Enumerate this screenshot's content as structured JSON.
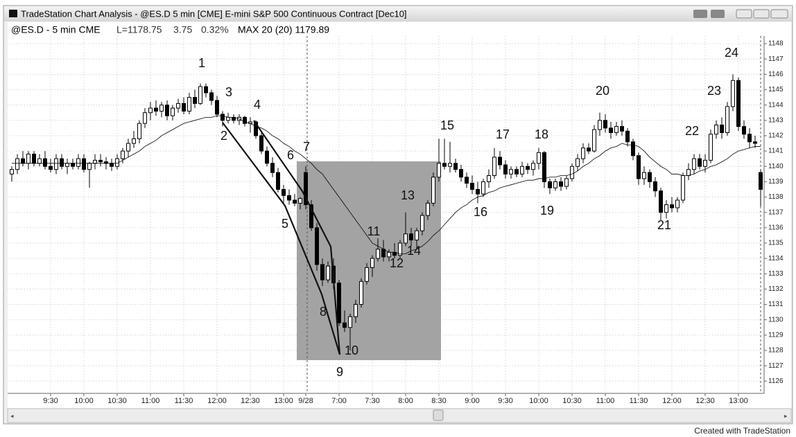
{
  "window_title": "TradeStation Chart Analysis - @ES.D 5 min [CME] E-mini S&P 500 Continuous Contract [Dec10]",
  "info": {
    "symbol": "@ES.D - 5 min CME",
    "last": "L=1178.75",
    "change": "3.75",
    "percent": "0.32%",
    "indicator": "MAX 20 (20) 1179.89"
  },
  "footer": "Created with TradeStation",
  "chart_data": {
    "type": "candlestick",
    "categories": [
      null,
      null,
      null,
      null,
      null,
      null,
      null,
      "9:30",
      null,
      null,
      null,
      null,
      null,
      "10:00",
      null,
      null,
      null,
      null,
      null,
      "10:30",
      null,
      null,
      null,
      null,
      null,
      "11:00",
      null,
      null,
      null,
      null,
      null,
      "11:30",
      null,
      null,
      null,
      null,
      null,
      "12:00",
      null,
      null,
      null,
      null,
      null,
      "12:30",
      null,
      null,
      null,
      null,
      null,
      "13:00",
      null,
      null,
      null,
      "9/28",
      null,
      null,
      null,
      null,
      null,
      "7:00",
      null,
      null,
      null,
      null,
      null,
      "7:30",
      null,
      null,
      null,
      null,
      null,
      "8:00",
      null,
      null,
      null,
      null,
      null,
      "8:30",
      null,
      null,
      null,
      null,
      null,
      "9:00",
      null,
      null,
      null,
      null,
      null,
      "9:30",
      null,
      null,
      null,
      null,
      null,
      "10:00",
      null,
      null,
      null,
      null,
      null,
      "10:30",
      null,
      null,
      null,
      null,
      null,
      "11:00",
      null,
      null,
      null,
      null,
      null,
      "11:30",
      null,
      null,
      null,
      null,
      null,
      "12:00",
      null,
      null,
      null,
      null,
      null,
      "12:30",
      null,
      null,
      null,
      null,
      null,
      "13:00",
      null,
      null,
      null,
      null
    ],
    "open": [
      1139.5,
      1139.8,
      1140.5,
      1140.2,
      1140.8,
      1140.2,
      1140.5,
      1140,
      1139.8,
      1140.5,
      1140,
      1140.2,
      1140,
      1140.5,
      1139.8,
      1140.2,
      1140.4,
      1140.3,
      1140.2,
      1140,
      1140.5,
      1141,
      1141.5,
      1141.8,
      1142.8,
      1143.5,
      1143.8,
      1143.6,
      1144,
      1143.3,
      1143.8,
      1144.1,
      1143.6,
      1144.5,
      1144.1,
      1145.2,
      1144.8,
      1144.3,
      1143.4,
      1143,
      1143.2,
      1143,
      1143.2,
      1142.8,
      1142.9,
      1142,
      1141,
      1140.2,
      1139.6,
      1138.5,
      1138.1,
      1137.8,
      1137.6,
      1139.6,
      1137.5,
      1136,
      1133.6,
      1132.6,
      1133.5,
      1132.4,
      1129.8,
      1129.5,
      1130.2,
      1131,
      1132.5,
      1133.4,
      1134,
      1134.6,
      1134.1,
      1134.4,
      1134.2,
      1135,
      1135.6,
      1135.2,
      1135.8,
      1136.8,
      1137.6,
      1139.3,
      1140.2,
      1140,
      1140.2,
      1139.8,
      1139.3,
      1138.9,
      1138.5,
      1138.2,
      1139,
      1139.4,
      1140.6,
      1140.1,
      1139.5,
      1139.8,
      1139.5,
      1140,
      1139.8,
      1140.2,
      1140.9,
      1139,
      1138.6,
      1139,
      1138.7,
      1139.2,
      1140,
      1140.5,
      1141.2,
      1141,
      1142.4,
      1143,
      1142.5,
      1142.2,
      1142.6,
      1142.3,
      1141.6,
      1140.7,
      1139.2,
      1139.6,
      1139,
      1138.4,
      1137,
      1137.5,
      1137.3,
      1137.8,
      1139.4,
      1139.8,
      1140.5,
      1140,
      1140.4,
      1142.1,
      1142.7,
      1142.2,
      1143.9,
      1145.6,
      1142.6,
      1142.1,
      1141.6,
      1139.6
    ],
    "high": [
      1140,
      1140.8,
      1141,
      1141,
      1141,
      1140.8,
      1141,
      1140.5,
      1140.8,
      1140.8,
      1140.5,
      1140.5,
      1140.8,
      1140.8,
      1140.3,
      1140.8,
      1140.8,
      1140.6,
      1140.5,
      1140.8,
      1141.2,
      1141.8,
      1142.3,
      1143,
      1143.8,
      1144.2,
      1144.3,
      1144.2,
      1144.3,
      1144,
      1144.4,
      1144.5,
      1144.8,
      1145,
      1145.4,
      1145.4,
      1145,
      1144.6,
      1143.6,
      1143.5,
      1143.4,
      1143.4,
      1143.3,
      1143.2,
      1143,
      1142.2,
      1141.3,
      1140.6,
      1139.9,
      1138.8,
      1138.5,
      1138.2,
      1138,
      1140,
      1137.8,
      1136.3,
      1134,
      1133.8,
      1134,
      1132.6,
      1130.6,
      1130.4,
      1131.3,
      1132.7,
      1133.7,
      1134.2,
      1135.3,
      1135.2,
      1134.6,
      1135,
      1135.2,
      1137,
      1136,
      1136,
      1137,
      1137.8,
      1139.6,
      1141.8,
      1141.8,
      1141.6,
      1140.5,
      1140.1,
      1139.6,
      1139.4,
      1139,
      1139.2,
      1139.8,
      1141.2,
      1141,
      1140.4,
      1140,
      1140,
      1140.3,
      1140.2,
      1140.4,
      1141.2,
      1141,
      1139.2,
      1139.2,
      1139.3,
      1139.4,
      1140.2,
      1140.8,
      1141.5,
      1141.5,
      1142.7,
      1143.5,
      1143.4,
      1142.9,
      1142.9,
      1143,
      1142.5,
      1141.8,
      1140.9,
      1140,
      1139.8,
      1139.3,
      1138.6,
      1137.8,
      1138,
      1138,
      1139.6,
      1140.2,
      1140.8,
      1140.8,
      1140.8,
      1142.4,
      1143,
      1143.2,
      1144.2,
      1146,
      1145.8,
      1143,
      1142.5,
      1142,
      1139.8
    ],
    "low": [
      1139,
      1139.5,
      1140,
      1139.8,
      1140,
      1140,
      1139.8,
      1139.6,
      1139.5,
      1139.8,
      1139.5,
      1139.8,
      1139.8,
      1139.6,
      1138.6,
      1139.8,
      1140,
      1139.8,
      1139.7,
      1139.8,
      1140.2,
      1140.6,
      1141.2,
      1141.5,
      1142.5,
      1143,
      1143.3,
      1143.2,
      1143,
      1143,
      1143.5,
      1143.4,
      1143.4,
      1143.8,
      1144,
      1144.5,
      1144,
      1143.2,
      1142.6,
      1142.8,
      1142.8,
      1142.7,
      1142.6,
      1142.2,
      1141.8,
      1140.8,
      1140,
      1139.3,
      1138.3,
      1137.6,
      1137.5,
      1137.4,
      1137.2,
      1137.2,
      1135.8,
      1133.2,
      1132.2,
      1132.4,
      1132,
      1129.6,
      1129.2,
      1128,
      1129.8,
      1130.8,
      1132.3,
      1132.8,
      1133.8,
      1133.8,
      1133.8,
      1134,
      1134,
      1134.8,
      1134.8,
      1134.6,
      1135.5,
      1136.5,
      1137.4,
      1139,
      1139.8,
      1139.6,
      1139.6,
      1139,
      1138.6,
      1138.2,
      1137.6,
      1138,
      1138.6,
      1139.2,
      1139.8,
      1139.2,
      1139.2,
      1139.3,
      1139.3,
      1139.5,
      1139.4,
      1139.8,
      1138.6,
      1138.2,
      1138.4,
      1138.4,
      1138.5,
      1139,
      1139.7,
      1140.2,
      1140.8,
      1140.9,
      1142,
      1142.2,
      1141.8,
      1142,
      1142,
      1141.3,
      1140.4,
      1138.8,
      1138.8,
      1138.6,
      1138,
      1136.5,
      1136.6,
      1137,
      1137,
      1137.6,
      1139.1,
      1139.5,
      1139.8,
      1139.6,
      1140.2,
      1141.8,
      1141.8,
      1142,
      1143.6,
      1142.3,
      1141.8,
      1141.2,
      1141.2,
      1137.4
    ],
    "close": [
      1139.8,
      1140.5,
      1140.2,
      1140.8,
      1140.2,
      1140.5,
      1140,
      1139.8,
      1140.5,
      1140,
      1140.2,
      1140,
      1140.5,
      1139.8,
      1140.2,
      1140.4,
      1140.3,
      1140.2,
      1140,
      1140.5,
      1141,
      1141.5,
      1141.8,
      1142.8,
      1143.5,
      1143.8,
      1143.6,
      1144,
      1143.3,
      1143.8,
      1144.1,
      1143.6,
      1144.5,
      1144.1,
      1145.2,
      1144.8,
      1144.3,
      1143.4,
      1143,
      1143.2,
      1143,
      1143.2,
      1142.8,
      1142.9,
      1142,
      1141,
      1140.2,
      1139.6,
      1138.5,
      1138.1,
      1137.8,
      1137.6,
      1137.9,
      1137.5,
      1136,
      1133.6,
      1132.6,
      1133.5,
      1132.4,
      1129.8,
      1129.5,
      1130.2,
      1131,
      1132.5,
      1133.4,
      1134,
      1134.6,
      1134.1,
      1134.4,
      1134.2,
      1135,
      1135.6,
      1135.2,
      1135.8,
      1136.8,
      1137.6,
      1139.3,
      1140.2,
      1140,
      1140.2,
      1139.8,
      1139.3,
      1138.9,
      1138.5,
      1138.2,
      1139,
      1139.4,
      1140.6,
      1140.1,
      1139.5,
      1139.8,
      1139.5,
      1140,
      1139.8,
      1140.2,
      1140.9,
      1139,
      1138.6,
      1139,
      1138.7,
      1139.2,
      1140,
      1140.5,
      1141.2,
      1141,
      1142.4,
      1143,
      1142.5,
      1142.2,
      1142.6,
      1142.3,
      1141.6,
      1140.7,
      1139.2,
      1139.6,
      1139,
      1138.4,
      1137,
      1137.5,
      1137.3,
      1137.8,
      1139.4,
      1139.8,
      1140.5,
      1140,
      1140.4,
      1142.1,
      1142.7,
      1142.2,
      1143.9,
      1145.6,
      1142.6,
      1142.1,
      1141.6,
      1141.5,
      1138.5
    ],
    "ma_values": [
      1140.2,
      1140.2,
      1140.2,
      1140.2,
      1140.2,
      1140.2,
      1140.2,
      1140.2,
      1140.2,
      1140.2,
      1140.2,
      1140.2,
      1140.2,
      1140.2,
      1140.2,
      1140.2,
      1140.2,
      1140.2,
      1140.2,
      1140.2,
      1140.4,
      1140.6,
      1140.8,
      1141.0,
      1141.3,
      1141.5,
      1141.7,
      1142.0,
      1142.2,
      1142.4,
      1142.6,
      1142.8,
      1142.9,
      1143.0,
      1143.1,
      1143.2,
      1143.2,
      1143.3,
      1143.3,
      1143.2,
      1143.2,
      1143.1,
      1142.9,
      1142.8,
      1142.6,
      1142.5,
      1142.3,
      1142.0,
      1141.8,
      1141.5,
      1141.3,
      1141.0,
      1140.8,
      1140.5,
      1140.2,
      1139.8,
      1139.5,
      1139.0,
      1138.5,
      1138.0,
      1137.5,
      1137.0,
      1136.5,
      1136.0,
      1135.5,
      1135.0,
      1134.8,
      1134.6,
      1134.4,
      1134.4,
      1134.3,
      1134.3,
      1134.5,
      1134.6,
      1134.8,
      1135.1,
      1135.5,
      1135.8,
      1136.2,
      1136.6,
      1137.0,
      1137.3,
      1137.5,
      1137.8,
      1138.0,
      1138.1,
      1138.3,
      1138.4,
      1138.6,
      1138.7,
      1138.8,
      1138.9,
      1139.0,
      1139.1,
      1139.1,
      1139.2,
      1139.2,
      1139.3,
      1139.3,
      1139.4,
      1139.4,
      1139.5,
      1139.7,
      1140.0,
      1140.2,
      1140.5,
      1140.7,
      1141.0,
      1141.2,
      1141.3,
      1141.5,
      1141.4,
      1141.4,
      1141.3,
      1141.0,
      1140.6,
      1140.3,
      1140.0,
      1139.8,
      1139.5,
      1139.5,
      1139.4,
      1139.4,
      1139.5,
      1139.7,
      1139.8,
      1140.0,
      1140.1,
      1140.3,
      1140.5,
      1140.8,
      1141.0,
      1141.1,
      1141.2,
      1141.3,
      1141.3
    ],
    "ylim": [
      1125.2,
      1148.5
    ],
    "yticks": [
      1126,
      1127,
      1128,
      1129,
      1130,
      1131,
      1132,
      1133,
      1134,
      1135,
      1136,
      1137,
      1138,
      1139,
      1140,
      1141,
      1142,
      1143,
      1144,
      1145,
      1146,
      1147,
      1148
    ],
    "grid": true,
    "up_color": "#ffffff",
    "down_color": "#000000",
    "ma_color": "#000000",
    "annotations": [
      "1",
      "2",
      "3",
      "4",
      "5",
      "6",
      "7",
      "8",
      "9",
      "10",
      "11",
      "12",
      "13",
      "14",
      "15",
      "16",
      "17",
      "18",
      "19",
      "20",
      "21",
      "22",
      "23",
      "24"
    ]
  }
}
